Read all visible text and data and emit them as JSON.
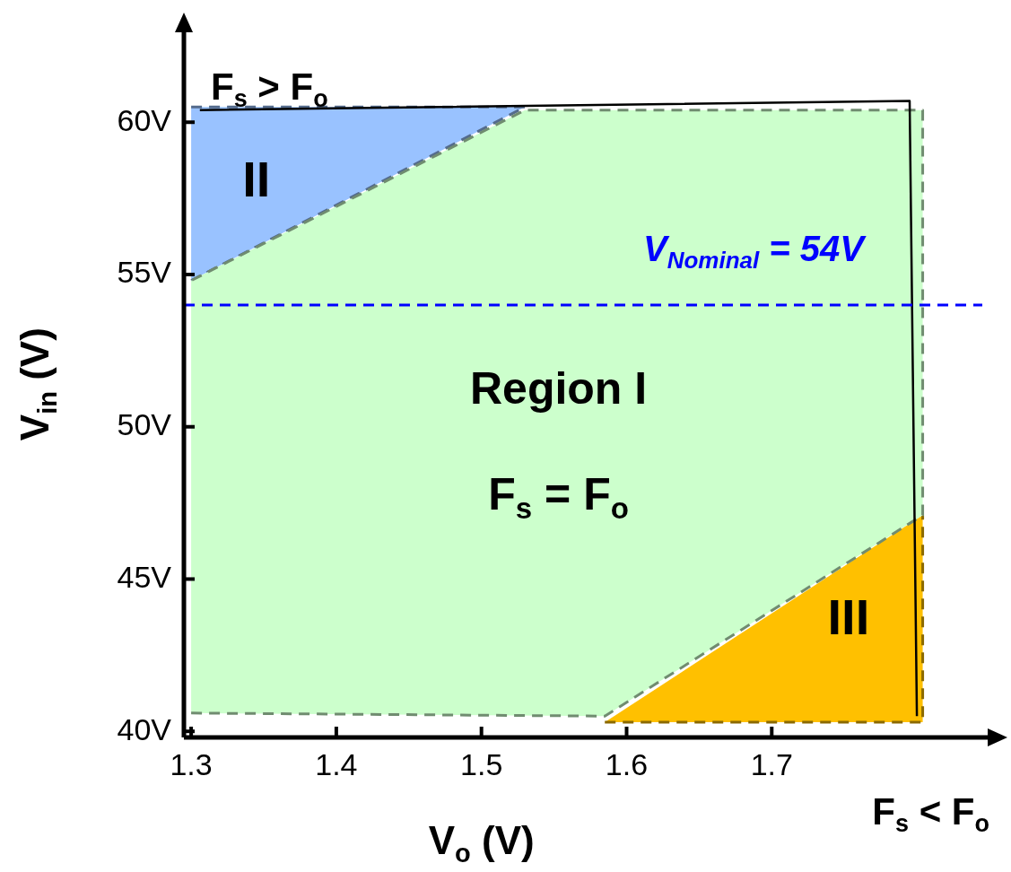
{
  "chart_data": {
    "type": "area",
    "xlabel": "V$_{o}$ (V)",
    "ylabel": "V$_{in}$ (V)",
    "xlim": [
      1.295,
      1.85
    ],
    "ylim": [
      39.8,
      63
    ],
    "xticks": [
      1.3,
      1.4,
      1.5,
      1.6,
      1.7
    ],
    "yticks": [
      {
        "value": 40,
        "label": "40V"
      },
      {
        "value": 45,
        "label": "45V"
      },
      {
        "value": 50,
        "label": "50V"
      },
      {
        "value": 55,
        "label": "55V"
      },
      {
        "value": 60,
        "label": "60V"
      }
    ],
    "series": [
      {
        "color": "#ccffcc",
        "x": [
          1.3,
          1.585,
          1.804,
          1.804,
          1.53,
          1.3
        ],
        "values": [
          40.6,
          40.5,
          47.1,
          60.4,
          60.4,
          54.8
        ],
        "line_style": "dashed"
      },
      {
        "color": "#99c2ff",
        "x": [
          1.3,
          1.53,
          1.3
        ],
        "values": [
          60.5,
          60.5,
          54.8
        ],
        "line_style": "dashed"
      },
      {
        "color": "#ffc000",
        "x": [
          1.585,
          1.804,
          1.804
        ],
        "values": [
          40.3,
          40.3,
          47.1
        ],
        "line_style": "dashed"
      },
      {
        "type": "line",
        "color": "#000000",
        "x": [
          1.306,
          1.795,
          1.8
        ],
        "values": [
          60.4,
          60.7,
          40.5
        ],
        "line_style": "solid"
      }
    ],
    "ref_lines": [
      {
        "axis": "y",
        "value": 54,
        "label": "V$_{Nominal}$ = 54V",
        "color": "#0000ff",
        "line_style": "dashed"
      }
    ],
    "annotations": [
      "F$_{s}$ > F$_{o}$",
      "F$_{s}$ < F$_{o}$",
      "II",
      "Region I",
      "F$_{s}$ = F$_{o}$",
      "III"
    ],
    "grid": false,
    "legend": false,
    "marker": "none"
  }
}
